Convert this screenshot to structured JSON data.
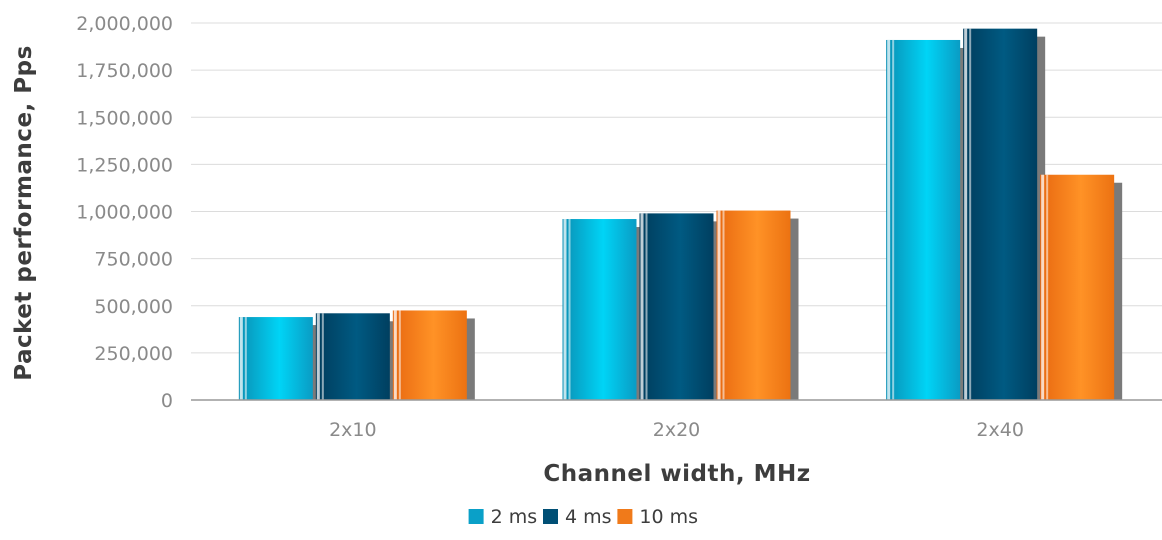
{
  "chart_data": {
    "type": "bar",
    "categories": [
      "2x10",
      "2x20",
      "2x40"
    ],
    "series": [
      {
        "name": "2 ms",
        "values": [
          440000,
          960000,
          1910000
        ],
        "color": "#0aa0c8"
      },
      {
        "name": "4 ms",
        "values": [
          460000,
          990000,
          1970000
        ],
        "color": "#004f75"
      },
      {
        "name": "10 ms",
        "values": [
          475000,
          1005000,
          1195000
        ],
        "color": "#f07a1a"
      }
    ],
    "yticks": [
      "0",
      "250,000",
      "500,000",
      "750,000",
      "1,000,000",
      "1,250,000",
      "1,500,000",
      "1,750,000",
      "2,000,000"
    ],
    "ytick_values": [
      0,
      250000,
      500000,
      750000,
      1000000,
      1250000,
      1500000,
      1750000,
      2000000
    ],
    "ylim": [
      0,
      2000000
    ],
    "xlabel": "Channel width, MHz",
    "ylabel": "Packet performance, Pps",
    "grid": true,
    "legend_position": "bottom"
  }
}
